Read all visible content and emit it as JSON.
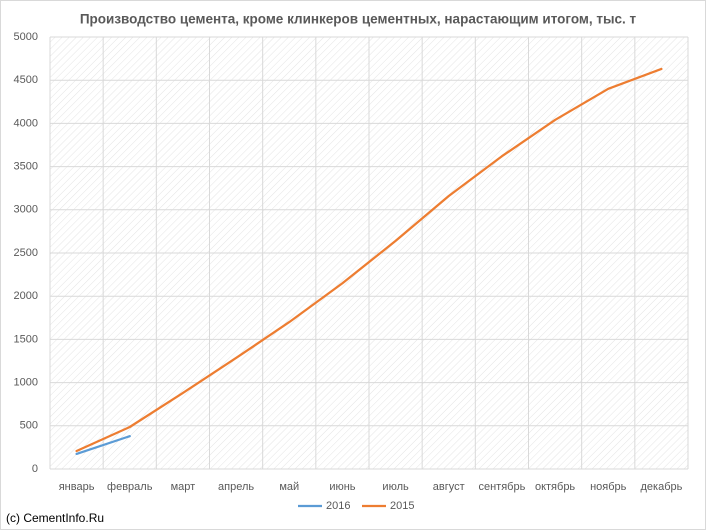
{
  "chart_data": {
    "type": "line",
    "title": "Производство цемента, кроме клинкеров цементных, нарастающим итогом, тыс. т",
    "categories": [
      "январь",
      "февраль",
      "март",
      "апрель",
      "май",
      "июнь",
      "июль",
      "август",
      "сентябрь",
      "октябрь",
      "ноябрь",
      "декабрь"
    ],
    "series": [
      {
        "name": "2016",
        "color": "#5b9bd5",
        "values": [
          175,
          380,
          null,
          null,
          null,
          null,
          null,
          null,
          null,
          null,
          null,
          null
        ]
      },
      {
        "name": "2015",
        "color": "#ed7d31",
        "values": [
          208,
          486,
          880,
          1285,
          1700,
          2150,
          2640,
          3160,
          3620,
          4040,
          4400,
          4630
        ]
      }
    ],
    "ylim": [
      0,
      5000
    ],
    "yticks": [
      0,
      500,
      1000,
      1500,
      2000,
      2500,
      3000,
      3500,
      4000,
      4500,
      5000
    ],
    "grid": true,
    "legend": "bottom",
    "watermark": "(c) CementInfo.Ru"
  }
}
